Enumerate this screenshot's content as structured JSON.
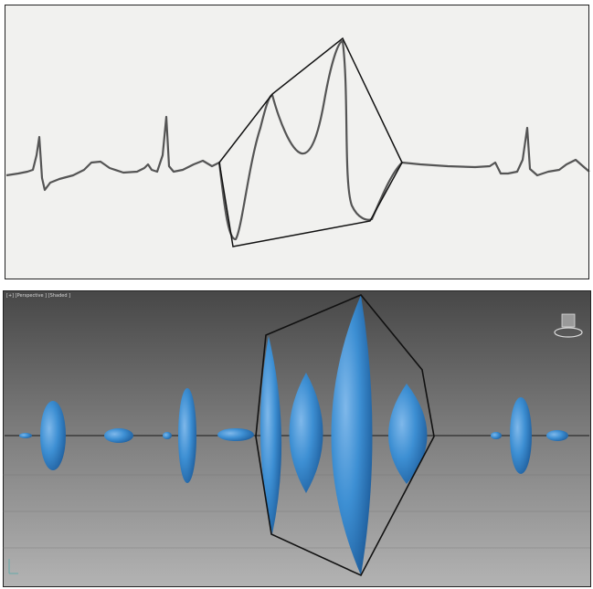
{
  "viewport": {
    "label": "[+] [Perspective ] [Shaded ]"
  }
}
